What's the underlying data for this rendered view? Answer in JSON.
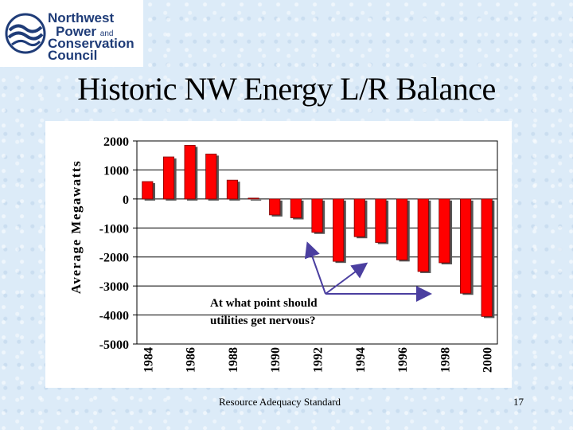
{
  "logo": {
    "line1": "Northwest",
    "line2": "Power",
    "line2_small": "and",
    "line3": "Conservation",
    "line4": "Council",
    "brand_color": "#1f3c78",
    "icon": "waves-logo-icon"
  },
  "title": "Historic NW Energy L/R Balance",
  "footer": "Resource Adequacy Standard",
  "page_number": "17",
  "chart_data": {
    "type": "bar",
    "title": "",
    "ylabel": "Average Megawatts",
    "xlabel": "",
    "ylim": [
      -5000,
      2000
    ],
    "yticks": [
      "2000",
      "1000",
      "0",
      "-1000",
      "-2000",
      "-3000",
      "-4000",
      "-5000"
    ],
    "categories": [
      "1984",
      "1985",
      "1986",
      "1987",
      "1988",
      "1989",
      "1990",
      "1991",
      "1992",
      "1993",
      "1994",
      "1995",
      "1996",
      "1997",
      "1998",
      "1999",
      "2000"
    ],
    "xtick_labels": [
      "1984",
      "1986",
      "1988",
      "1990",
      "1992",
      "1994",
      "1996",
      "1998",
      "2000"
    ],
    "values": [
      600,
      1450,
      1850,
      1550,
      650,
      30,
      -550,
      -650,
      -1150,
      -2150,
      -1300,
      -1500,
      -2100,
      -2500,
      -2200,
      -3250,
      -4050
    ],
    "bar_color": "#ff0000",
    "grid": "horizontal",
    "annotation": {
      "line1": "At what point should",
      "line2": "utilities get nervous?",
      "arrow_color": "#4b3fa0"
    }
  }
}
